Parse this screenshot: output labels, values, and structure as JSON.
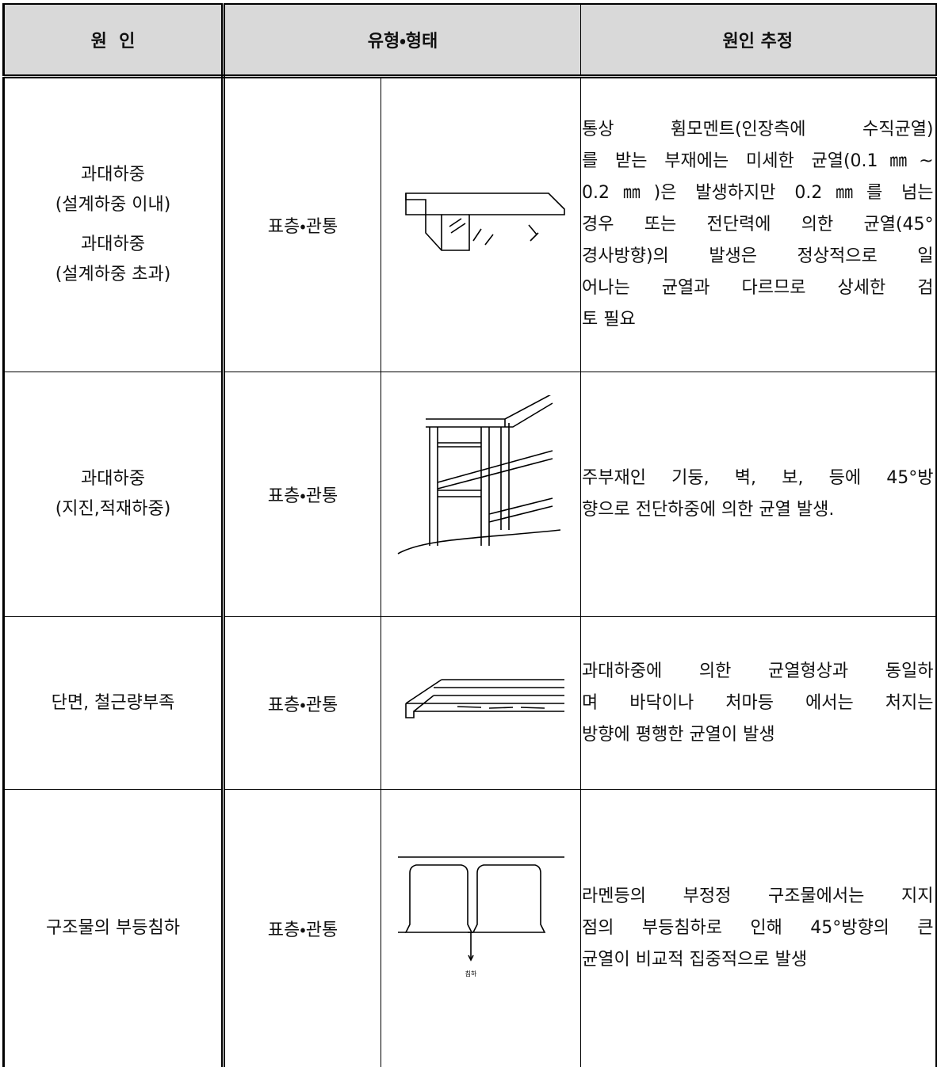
{
  "header": {
    "cause": "원  인",
    "type": "유형・형태",
    "estimate": "원인 추정"
  },
  "rows": [
    {
      "cause": [
        [
          "과대하중",
          "(설계하중 이내)"
        ],
        [
          "과대하중",
          "(설계하중 초과)"
        ]
      ],
      "type": "표층・관통",
      "estimate": [
        "통상 휨모멘트(인장측에 수직균열)",
        "를 받는 부재에는 미세한 균열(0.1㎜~",
        "0.2㎜)은 발생하지만 0.2㎜를 넘는",
        "경우 또는 전단력에 의한 균열(45°",
        "경사방향)의 발생은 정상적으로 일",
        "어나는 균열과 다르므로 상세한 검",
        "토 필요"
      ]
    },
    {
      "cause": [
        [
          "과대하중",
          "(지진,적재하중)"
        ]
      ],
      "type": "표층・관통",
      "estimate": [
        "주부재인 기둥, 벽, 보, 등에 45°방",
        "향으로 전단하중에 의한 균열 발생."
      ]
    },
    {
      "cause": [
        [
          "단면, 철근량부족"
        ]
      ],
      "type": "표층・관통",
      "estimate": [
        "과대하중에 의한 균열형상과 동일하",
        "며 바닥이나 처마등 에서는 처지는",
        "방향에 평행한 균열이 발생"
      ]
    },
    {
      "cause": [
        [
          "구조물의 부등침하"
        ]
      ],
      "type": "표층・관통",
      "figure_label": "침하",
      "estimate": [
        "라멘등의 부정정 구조물에서는 지지",
        "점의 부등침하로 인해 45°방향의 큰",
        "균열이 비교적 집중적으로 발생"
      ]
    }
  ]
}
